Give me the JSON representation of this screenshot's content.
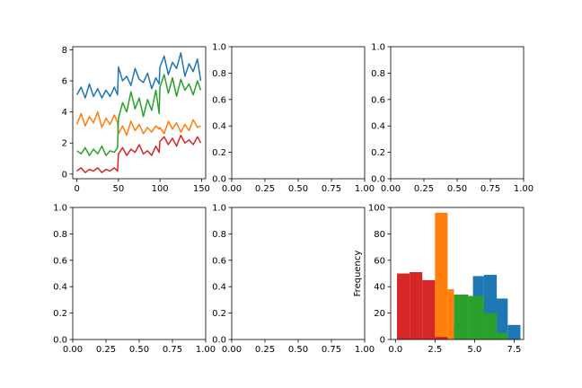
{
  "chart_data": [
    {
      "type": "line",
      "position": "row1-col1",
      "xlim": [
        -5,
        155
      ],
      "ylim": [
        -0.3,
        8.2
      ],
      "xticks": [
        0,
        50,
        100,
        150
      ],
      "yticks": [
        0,
        2,
        4,
        6,
        8
      ],
      "xlabel": "",
      "ylabel": "",
      "series": [
        {
          "color": "#1f77b4",
          "segments": [
            {
              "x": [
                0,
                5,
                10,
                15,
                20,
                25,
                30,
                35,
                40,
                45,
                49
              ],
              "y": [
                5.1,
                5.6,
                4.9,
                5.8,
                5.0,
                5.5,
                4.9,
                5.4,
                5.0,
                5.6,
                5.1
              ]
            },
            {
              "x": [
                50,
                55,
                60,
                65,
                70,
                75,
                80,
                85,
                90,
                95,
                99
              ],
              "y": [
                6.9,
                6.0,
                6.3,
                5.7,
                6.8,
                6.1,
                5.9,
                6.5,
                5.5,
                6.2,
                5.8
              ]
            },
            {
              "x": [
                100,
                105,
                110,
                115,
                120,
                125,
                130,
                135,
                140,
                145,
                149
              ],
              "y": [
                6.9,
                7.6,
                6.4,
                7.2,
                6.8,
                7.8,
                6.3,
                7.1,
                6.6,
                7.4,
                6.0
              ]
            }
          ]
        },
        {
          "color": "#ff7f0e",
          "segments": [
            {
              "x": [
                0,
                5,
                10,
                15,
                20,
                25,
                30,
                35,
                40,
                45,
                49
              ],
              "y": [
                3.2,
                3.9,
                3.1,
                3.7,
                3.3,
                4.0,
                3.0,
                3.6,
                3.2,
                3.8,
                3.3
              ]
            },
            {
              "x": [
                50,
                55,
                60,
                65,
                70,
                75,
                80,
                85,
                90,
                95,
                99
              ],
              "y": [
                2.6,
                3.1,
                2.5,
                3.4,
                2.8,
                3.2,
                2.6,
                3.0,
                2.7,
                3.1,
                2.9
              ]
            },
            {
              "x": [
                100,
                105,
                110,
                115,
                120,
                125,
                130,
                135,
                140,
                145,
                149
              ],
              "y": [
                3.0,
                2.6,
                3.4,
                2.9,
                3.3,
                2.7,
                3.2,
                2.8,
                3.5,
                3.0,
                3.1
              ]
            }
          ]
        },
        {
          "color": "#2ca02c",
          "segments": [
            {
              "x": [
                0,
                5,
                10,
                15,
                20,
                25,
                30,
                35,
                40,
                45,
                49
              ],
              "y": [
                1.5,
                1.3,
                1.7,
                1.2,
                1.6,
                1.3,
                1.8,
                1.2,
                1.5,
                1.4,
                1.7
              ]
            },
            {
              "x": [
                50,
                55,
                60,
                65,
                70,
                75,
                80,
                85,
                90,
                95,
                99
              ],
              "y": [
                3.6,
                4.6,
                4.0,
                5.3,
                4.2,
                4.9,
                3.7,
                4.8,
                4.1,
                5.4,
                3.9
              ]
            },
            {
              "x": [
                100,
                105,
                110,
                115,
                120,
                125,
                130,
                135,
                140,
                145,
                149
              ],
              "y": [
                5.6,
                6.4,
                5.2,
                6.2,
                5.0,
                6.1,
                5.4,
                5.8,
                5.1,
                6.0,
                5.4
              ]
            }
          ]
        },
        {
          "color": "#d62728",
          "segments": [
            {
              "x": [
                0,
                5,
                10,
                15,
                20,
                25,
                30,
                35,
                40,
                45,
                49
              ],
              "y": [
                0.2,
                0.4,
                0.1,
                0.3,
                0.2,
                0.4,
                0.1,
                0.3,
                0.2,
                0.4,
                0.2
              ]
            },
            {
              "x": [
                50,
                55,
                60,
                65,
                70,
                75,
                80,
                85,
                90,
                95,
                99
              ],
              "y": [
                1.3,
                1.7,
                1.2,
                1.6,
                1.4,
                1.9,
                1.3,
                1.5,
                1.2,
                1.8,
                1.4
              ]
            },
            {
              "x": [
                100,
                105,
                110,
                115,
                120,
                125,
                130,
                135,
                140,
                145,
                149
              ],
              "y": [
                2.1,
                2.4,
                1.9,
                2.3,
                1.8,
                2.5,
                2.0,
                2.2,
                1.9,
                2.4,
                2.0
              ]
            }
          ]
        }
      ]
    },
    {
      "type": "empty",
      "position": "row1-col2",
      "xlim": [
        0,
        1
      ],
      "ylim": [
        0,
        1
      ],
      "xticks": [
        "0.00",
        "0.25",
        "0.50",
        "0.75",
        "1.00"
      ],
      "yticks": [
        "0.0",
        "0.2",
        "0.4",
        "0.6",
        "0.8",
        "1.0"
      ]
    },
    {
      "type": "empty",
      "position": "row1-col3",
      "xlim": [
        0,
        1
      ],
      "ylim": [
        0,
        1
      ],
      "xticks": [
        "0.00",
        "0.25",
        "0.50",
        "0.75",
        "1.00"
      ],
      "yticks": [
        "0.0",
        "0.2",
        "0.4",
        "0.6",
        "0.8",
        "1.0"
      ]
    },
    {
      "type": "empty",
      "position": "row2-col1",
      "xlim": [
        0,
        1
      ],
      "ylim": [
        0,
        1
      ],
      "xticks": [
        "0.00",
        "0.25",
        "0.50",
        "0.75",
        "1.00"
      ],
      "yticks": [
        "0.0",
        "0.2",
        "0.4",
        "0.6",
        "0.8",
        "1.0"
      ]
    },
    {
      "type": "empty",
      "position": "row2-col2",
      "xlim": [
        0,
        1
      ],
      "ylim": [
        0,
        1
      ],
      "xticks": [
        "0.00",
        "0.25",
        "0.50",
        "0.75",
        "1.00"
      ],
      "yticks": [
        "0.0",
        "0.2",
        "0.4",
        "0.6",
        "0.8",
        "1.0"
      ]
    },
    {
      "type": "histogram",
      "position": "row2-col3",
      "xlim": [
        -0.3,
        8.1
      ],
      "ylim": [
        0,
        100
      ],
      "xticks": [
        "0.0",
        "2.5",
        "5.0",
        "7.5"
      ],
      "yticks": [
        "0",
        "20",
        "40",
        "60",
        "80",
        "100"
      ],
      "xlabel": "",
      "ylabel": "Frequency",
      "series": [
        {
          "color": "#1f77b4",
          "bins": [
            [
              4.9,
              5.6,
              48
            ],
            [
              5.6,
              6.4,
              49
            ],
            [
              6.4,
              7.1,
              31
            ],
            [
              7.1,
              7.9,
              11
            ]
          ]
        },
        {
          "color": "#2ca02c",
          "bins": [
            [
              3.3,
              3.7,
              10
            ],
            [
              3.7,
              4.6,
              34
            ],
            [
              4.6,
              5.6,
              33
            ],
            [
              5.6,
              6.4,
              20
            ],
            [
              6.4,
              7.1,
              5
            ]
          ]
        },
        {
          "color": "#ff7f0e",
          "bins": [
            [
              2.5,
              3.3,
              96
            ],
            [
              3.3,
              3.7,
              38
            ]
          ]
        },
        {
          "color": "#d62728",
          "bins": [
            [
              0.1,
              0.9,
              50
            ],
            [
              0.9,
              1.7,
              51
            ],
            [
              1.7,
              2.5,
              45
            ],
            [
              2.5,
              3.3,
              2
            ]
          ]
        }
      ]
    }
  ]
}
